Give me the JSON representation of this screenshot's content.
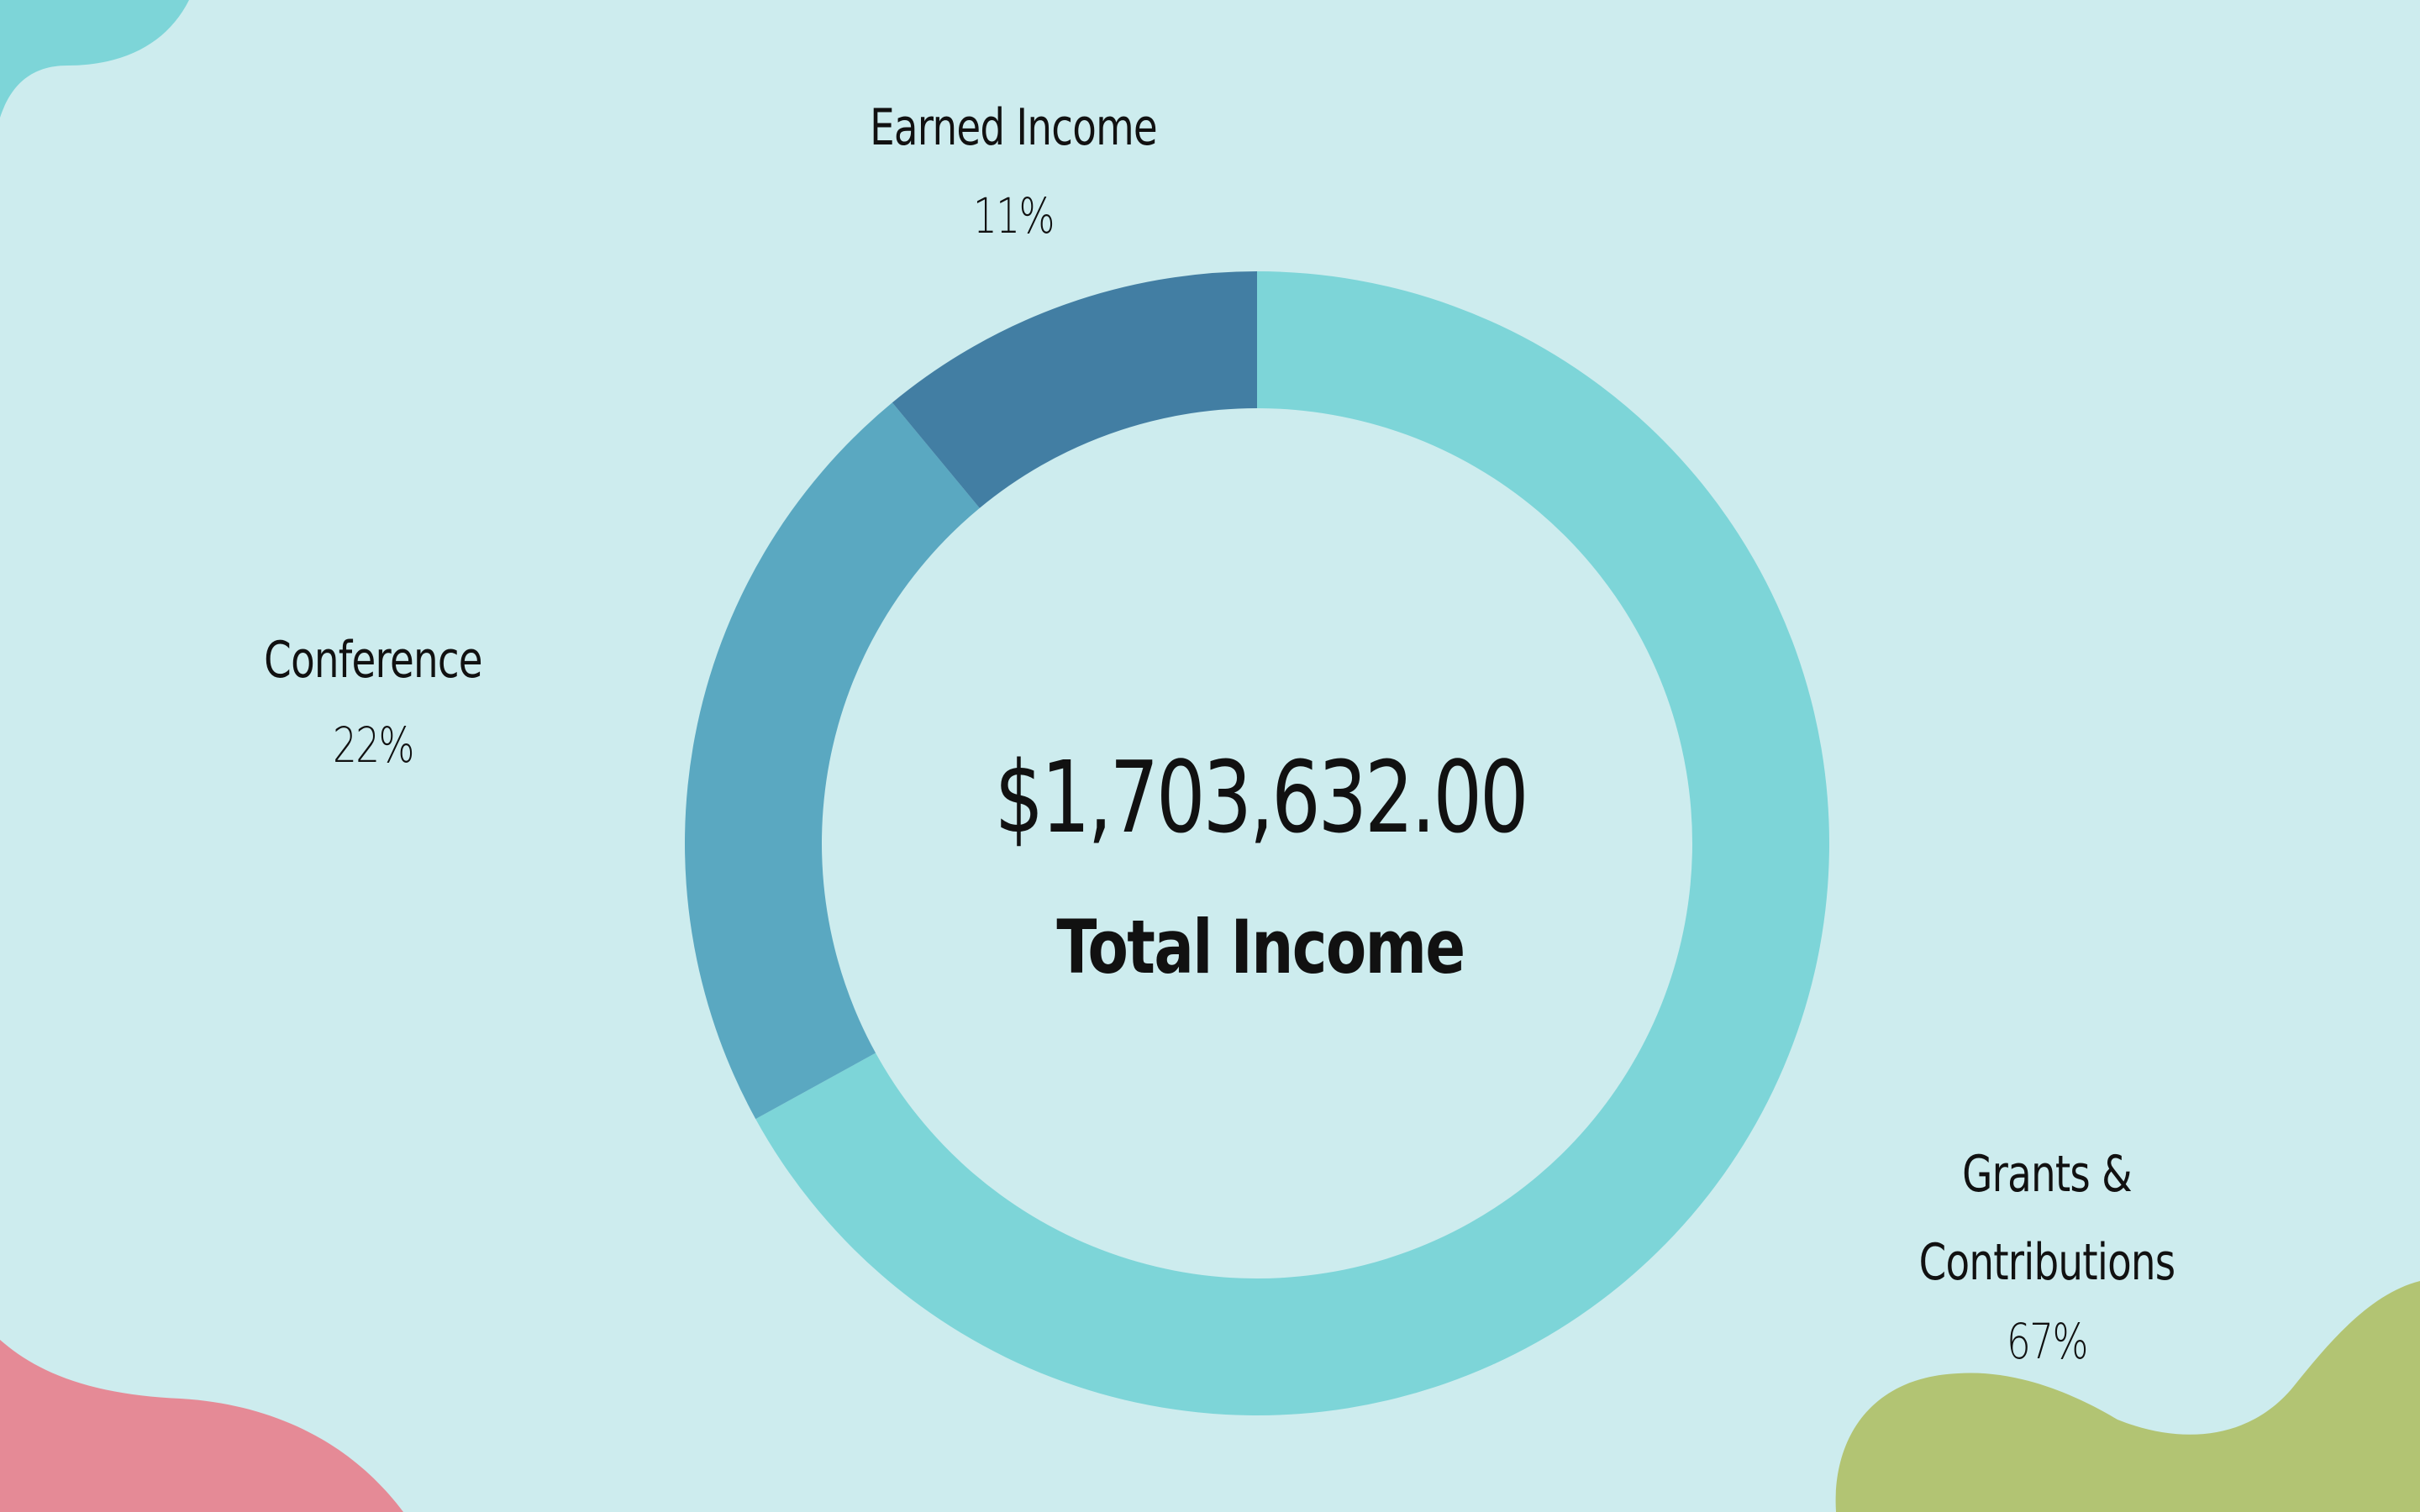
{
  "colors": {
    "background": "#cdecee",
    "blob_teal": "#7dd5d8",
    "blob_pink": "#e58a96",
    "blob_green": "#b2c473"
  },
  "center": {
    "total": "$1,703,632.00",
    "caption": "Total Income"
  },
  "chart_data": {
    "type": "pie",
    "variant": "donut",
    "start": "12 o'clock, clockwise",
    "slices": [
      {
        "label": "Grants & Contributions",
        "value": 67,
        "display": "67%",
        "color": "#7dd5d8"
      },
      {
        "label": "Conference",
        "value": 22,
        "display": "22%",
        "color": "#5aa8c1"
      },
      {
        "label": "Earned Income",
        "value": 11,
        "display": "11%",
        "color": "#427ea3"
      }
    ]
  }
}
